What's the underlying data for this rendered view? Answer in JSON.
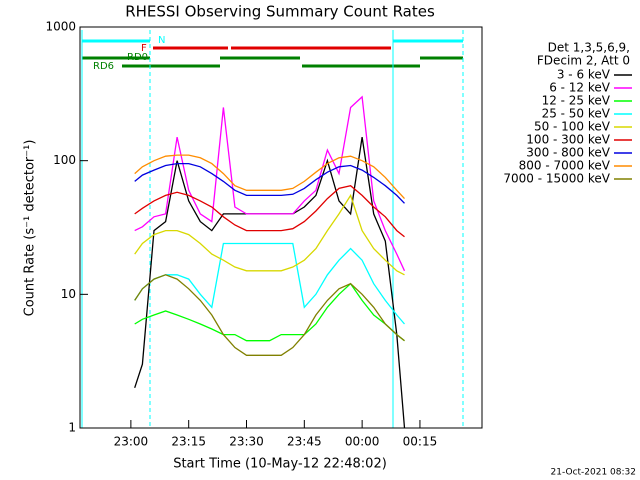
{
  "chart_data": {
    "type": "line",
    "title": "RHESSI Observing Summary Count Rates",
    "x_label": "Start Time (10-May-12 22:48:02)",
    "y_label": "Count Rate (s⁻¹ detector⁻¹)",
    "legend_title": [
      "Det 1,3,5,6,9,",
      "FDecim 2, Att 0"
    ],
    "annotations": [
      "N",
      "F",
      "RD0",
      "RD6"
    ],
    "footer": "21-Oct-2021 08:32",
    "log_y": true,
    "ylim": [
      1,
      1000
    ],
    "yticks": [
      1,
      10,
      100,
      1000
    ],
    "xlim": [
      -13.2,
      91.1
    ],
    "xticks": [
      {
        "value": 0,
        "label": "23:00"
      },
      {
        "value": 15,
        "label": "23:15"
      },
      {
        "value": 30,
        "label": "23:30"
      },
      {
        "value": 45,
        "label": "23:45"
      },
      {
        "value": 60,
        "label": "00:00"
      },
      {
        "value": 75,
        "label": "00:15"
      }
    ],
    "x": [
      1,
      3,
      6,
      9,
      12,
      15,
      18,
      21,
      24,
      27,
      30,
      33,
      36,
      39,
      42,
      45,
      48,
      51,
      54,
      57,
      60,
      63,
      66,
      69,
      71
    ],
    "series": [
      {
        "name": "3 - 6 keV",
        "color": "#000000",
        "values": [
          2,
          3,
          30,
          35,
          100,
          50,
          35,
          30,
          40,
          40,
          40,
          40,
          40,
          40,
          40,
          45,
          55,
          100,
          50,
          40,
          150,
          40,
          25,
          5,
          1
        ]
      },
      {
        "name": "6 - 12 keV",
        "color": "#ff00ff",
        "values": [
          30,
          32,
          38,
          40,
          150,
          60,
          40,
          35,
          250,
          45,
          40,
          40,
          40,
          40,
          40,
          50,
          60,
          120,
          80,
          250,
          300,
          50,
          30,
          20,
          15
        ]
      },
      {
        "name": "12 - 25 keV",
        "color": "#00ff00",
        "values": [
          6,
          6.5,
          7,
          7.5,
          7,
          6.5,
          6,
          5.5,
          5,
          5,
          4.5,
          4.5,
          4.5,
          5,
          5,
          5,
          6,
          8,
          10,
          12,
          9,
          7,
          6,
          5,
          4.5
        ]
      },
      {
        "name": "25 - 50 keV",
        "color": "#00ffff",
        "values": [
          9,
          11,
          13,
          14,
          14,
          13,
          10,
          8,
          24,
          24,
          24,
          24,
          24,
          24,
          24,
          8,
          10,
          14,
          18,
          22,
          18,
          12,
          9,
          7,
          6
        ]
      },
      {
        "name": "50 - 100 keV",
        "color": "#d8d800",
        "values": [
          20,
          24,
          28,
          30,
          30,
          28,
          24,
          20,
          18,
          16,
          15,
          15,
          15,
          15,
          16,
          18,
          22,
          30,
          40,
          55,
          30,
          22,
          18,
          15,
          14
        ]
      },
      {
        "name": "100 - 300 keV",
        "color": "#e00000",
        "values": [
          40,
          44,
          50,
          55,
          58,
          55,
          50,
          45,
          38,
          33,
          30,
          30,
          30,
          30,
          31,
          35,
          42,
          52,
          62,
          65,
          55,
          45,
          38,
          30,
          27
        ]
      },
      {
        "name": "300 - 800 keV",
        "color": "#0000e0",
        "values": [
          70,
          78,
          85,
          92,
          95,
          95,
          90,
          80,
          70,
          60,
          55,
          55,
          55,
          55,
          56,
          62,
          72,
          82,
          90,
          92,
          85,
          75,
          65,
          55,
          48
        ]
      },
      {
        "name": "800 - 7000 keV",
        "color": "#ff8c00",
        "values": [
          80,
          90,
          100,
          108,
          110,
          110,
          105,
          95,
          80,
          65,
          60,
          60,
          60,
          60,
          62,
          70,
          82,
          95,
          105,
          108,
          100,
          90,
          75,
          60,
          52
        ]
      },
      {
        "name": "7000 - 15000 keV",
        "color": "#808000",
        "values": [
          9,
          11,
          13,
          14,
          13,
          11,
          9,
          7,
          5,
          4,
          3.5,
          3.5,
          3.5,
          3.5,
          4,
          5,
          7,
          9,
          11,
          12,
          10,
          8,
          6,
          5,
          4.5
        ]
      }
    ]
  }
}
